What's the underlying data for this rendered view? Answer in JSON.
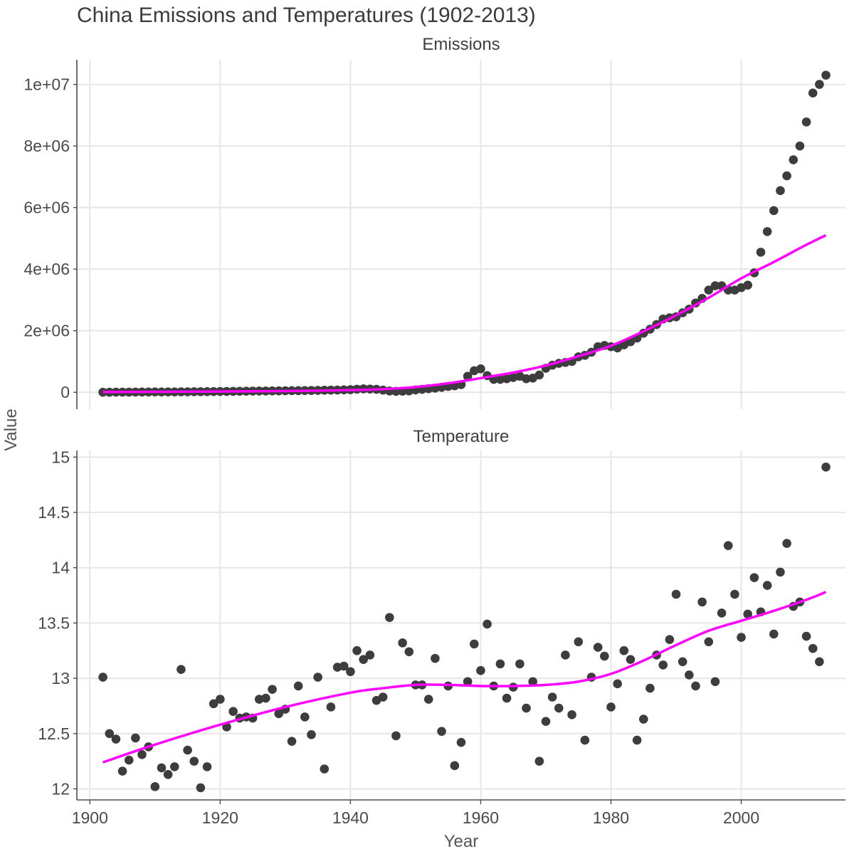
{
  "chart_data": {
    "type": "scatter",
    "title": "China Emissions and Temperatures (1902-2013)",
    "xlabel": "Year",
    "ylabel": "Value",
    "x_ticks": [
      1900,
      1920,
      1940,
      1960,
      1980,
      2000
    ],
    "xlim": [
      1898,
      2016
    ],
    "grid": true,
    "trend_color": "#ff00ff",
    "point_color": "#3d3d3d",
    "panels": [
      {
        "name": "Emissions",
        "ylim": [
          -550000,
          10800000
        ],
        "y_ticks": [
          0,
          2000000,
          4000000,
          6000000,
          8000000,
          10000000
        ],
        "y_tick_labels": [
          "0",
          "2e+06",
          "4e+06",
          "6e+06",
          "8e+06",
          "1e+07"
        ],
        "series": [
          {
            "type": "scatter",
            "x": [
              1902,
              1903,
              1904,
              1905,
              1906,
              1907,
              1908,
              1909,
              1910,
              1911,
              1912,
              1913,
              1914,
              1915,
              1916,
              1917,
              1918,
              1919,
              1920,
              1921,
              1922,
              1923,
              1924,
              1925,
              1926,
              1927,
              1928,
              1929,
              1930,
              1931,
              1932,
              1933,
              1934,
              1935,
              1936,
              1937,
              1938,
              1939,
              1940,
              1941,
              1942,
              1943,
              1944,
              1945,
              1946,
              1947,
              1948,
              1949,
              1950,
              1951,
              1952,
              1953,
              1954,
              1955,
              1956,
              1957,
              1958,
              1959,
              1960,
              1961,
              1962,
              1963,
              1964,
              1965,
              1966,
              1967,
              1968,
              1969,
              1970,
              1971,
              1972,
              1973,
              1974,
              1975,
              1976,
              1977,
              1978,
              1979,
              1980,
              1981,
              1982,
              1983,
              1984,
              1985,
              1986,
              1987,
              1988,
              1989,
              1990,
              1991,
              1992,
              1993,
              1994,
              1995,
              1996,
              1997,
              1998,
              1999,
              2000,
              2001,
              2002,
              2003,
              2004,
              2005,
              2006,
              2007,
              2008,
              2009,
              2010,
              2011,
              2012,
              2013
            ],
            "y": [
              1000,
              2000,
              3000,
              4000,
              5000,
              6000,
              8000,
              9000,
              11000,
              10000,
              12000,
              13000,
              14000,
              15000,
              17000,
              19000,
              21000,
              24000,
              26000,
              28000,
              30000,
              32000,
              35000,
              37000,
              40000,
              42000,
              45000,
              47000,
              50000,
              52000,
              53000,
              55000,
              58000,
              62000,
              66000,
              70000,
              74000,
              78000,
              85000,
              100000,
              110000,
              105000,
              95000,
              70000,
              40000,
              30000,
              35000,
              45000,
              75000,
              95000,
              115000,
              135000,
              160000,
              190000,
              210000,
              250000,
              520000,
              700000,
              760000,
              540000,
              420000,
              420000,
              440000,
              480000,
              520000,
              440000,
              460000,
              560000,
              780000,
              880000,
              940000,
              970000,
              1000000,
              1150000,
              1200000,
              1300000,
              1480000,
              1520000,
              1480000,
              1440000,
              1540000,
              1640000,
              1760000,
              1920000,
              2050000,
              2200000,
              2380000,
              2420000,
              2450000,
              2580000,
              2700000,
              2900000,
              3050000,
              3320000,
              3460000,
              3460000,
              3320000,
              3320000,
              3400000,
              3480000,
              3880000,
              4550000,
              5220000,
              5900000,
              6550000,
              7030000,
              7550000,
              8000000,
              8780000,
              9720000,
              10000000,
              10300000
            ]
          }
        ],
        "trend": {
          "x": [
            1902,
            1910,
            1920,
            1930,
            1940,
            1945,
            1950,
            1955,
            1960,
            1965,
            1970,
            1975,
            1980,
            1985,
            1990,
            1995,
            2000,
            2005,
            2010,
            2013
          ],
          "y": [
            10000,
            15000,
            25000,
            40000,
            70000,
            100000,
            170000,
            290000,
            460000,
            640000,
            870000,
            1170000,
            1510000,
            1980000,
            2500000,
            3070000,
            3700000,
            4230000,
            4790000,
            5100000
          ]
        }
      },
      {
        "name": "Temperature",
        "ylim": [
          11.9,
          15.06
        ],
        "y_ticks": [
          12,
          12.5,
          13,
          13.5,
          14,
          14.5,
          15
        ],
        "y_tick_labels": [
          "12",
          "12.5",
          "13",
          "13.5",
          "14",
          "14.5",
          "15"
        ],
        "series": [
          {
            "type": "scatter",
            "x": [
              1902,
              1903,
              1904,
              1905,
              1906,
              1907,
              1908,
              1909,
              1910,
              1911,
              1912,
              1913,
              1914,
              1915,
              1916,
              1917,
              1918,
              1919,
              1920,
              1921,
              1922,
              1923,
              1924,
              1925,
              1926,
              1927,
              1928,
              1929,
              1930,
              1931,
              1932,
              1933,
              1934,
              1935,
              1936,
              1937,
              1938,
              1939,
              1940,
              1941,
              1942,
              1943,
              1944,
              1945,
              1946,
              1947,
              1948,
              1949,
              1950,
              1951,
              1952,
              1953,
              1954,
              1955,
              1956,
              1957,
              1958,
              1959,
              1960,
              1961,
              1962,
              1963,
              1964,
              1965,
              1966,
              1967,
              1968,
              1969,
              1970,
              1971,
              1972,
              1973,
              1974,
              1975,
              1976,
              1977,
              1978,
              1979,
              1980,
              1981,
              1982,
              1983,
              1984,
              1985,
              1986,
              1987,
              1988,
              1989,
              1990,
              1991,
              1992,
              1993,
              1994,
              1995,
              1996,
              1997,
              1998,
              1999,
              2000,
              2001,
              2002,
              2003,
              2004,
              2005,
              2006,
              2007,
              2008,
              2009,
              2010,
              2011,
              2012,
              2013
            ],
            "y": [
              13.01,
              12.5,
              12.45,
              12.16,
              12.26,
              12.46,
              12.31,
              12.38,
              12.02,
              12.19,
              12.13,
              12.2,
              13.08,
              12.35,
              12.25,
              12.01,
              12.2,
              12.77,
              12.81,
              12.56,
              12.7,
              12.64,
              12.65,
              12.64,
              12.81,
              12.82,
              12.9,
              12.68,
              12.72,
              12.43,
              12.93,
              12.65,
              12.49,
              13.01,
              12.18,
              12.74,
              13.1,
              13.11,
              13.06,
              13.25,
              13.17,
              13.21,
              12.8,
              12.83,
              13.55,
              12.48,
              13.32,
              13.24,
              12.94,
              12.94,
              12.81,
              13.18,
              12.52,
              12.93,
              12.21,
              12.42,
              12.97,
              13.31,
              13.07,
              13.49,
              12.93,
              13.13,
              12.82,
              12.92,
              13.13,
              12.73,
              12.97,
              12.25,
              12.61,
              12.83,
              12.73,
              13.21,
              12.67,
              13.33,
              12.44,
              13.01,
              13.28,
              13.2,
              12.74,
              12.95,
              13.25,
              13.17,
              12.44,
              12.63,
              12.91,
              13.21,
              13.12,
              13.35,
              13.76,
              13.15,
              13.03,
              12.93,
              13.69,
              13.33,
              12.97,
              13.59,
              14.2,
              13.76,
              13.37,
              13.58,
              13.91,
              13.6,
              13.84,
              13.4,
              13.96,
              14.22,
              13.65,
              13.69,
              13.38,
              13.27,
              13.15,
              14.91
            ]
          }
        ],
        "trend": {
          "x": [
            1902,
            1910,
            1920,
            1930,
            1940,
            1945,
            1950,
            1955,
            1960,
            1965,
            1970,
            1975,
            1980,
            1985,
            1990,
            1995,
            2000,
            2005,
            2010,
            2013
          ],
          "y": [
            12.24,
            12.4,
            12.58,
            12.74,
            12.87,
            12.91,
            12.94,
            12.94,
            12.93,
            12.93,
            12.94,
            12.97,
            13.04,
            13.16,
            13.3,
            13.43,
            13.52,
            13.61,
            13.71,
            13.78
          ]
        }
      }
    ]
  }
}
